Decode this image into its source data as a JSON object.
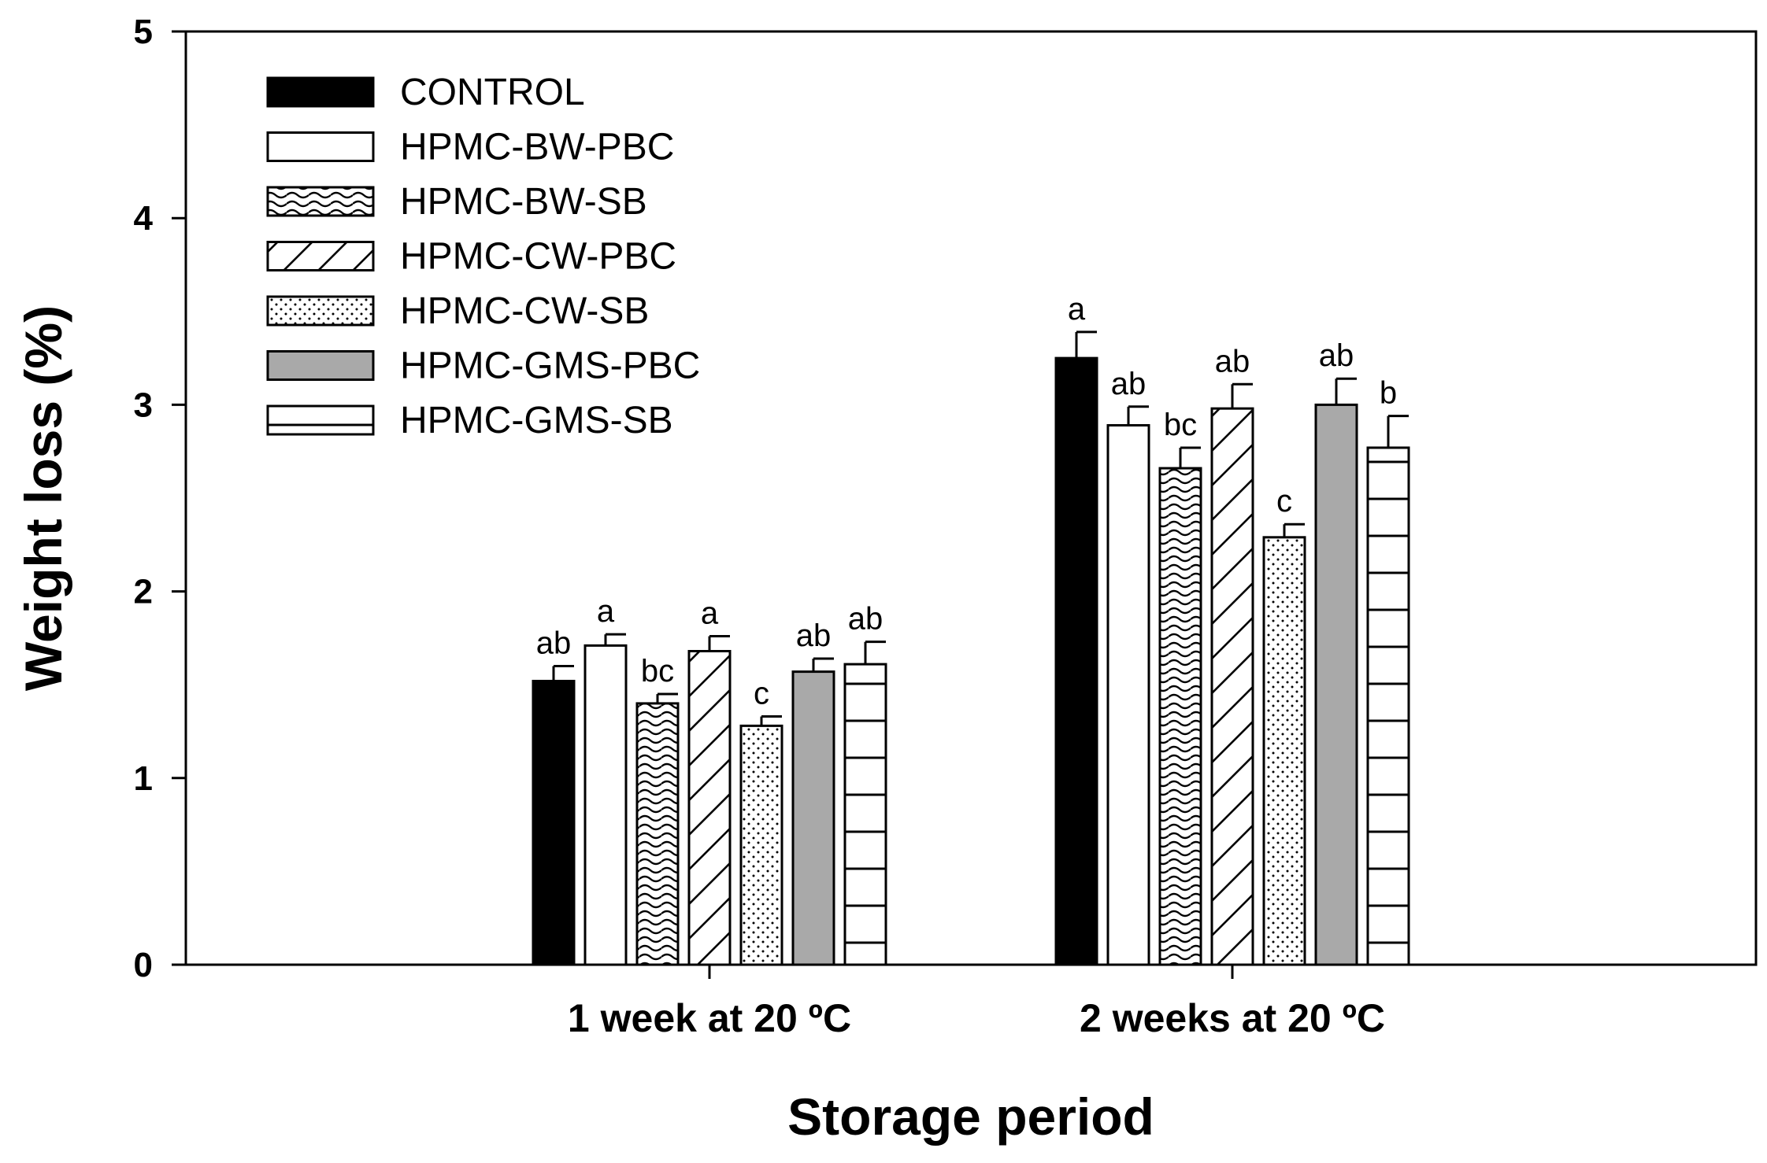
{
  "chart_data": {
    "type": "bar",
    "title": "",
    "xlabel": "Storage period",
    "ylabel": "Weight loss (%)",
    "ylim": [
      0,
      5
    ],
    "yticks": [
      0,
      1,
      2,
      3,
      4,
      5
    ],
    "grid": false,
    "legend_position": "top-left",
    "categories": [
      "1 week at 20 ºC",
      "2 weeks at 20 ºC"
    ],
    "series": [
      {
        "name": "CONTROL",
        "pattern": "solid-black",
        "values": [
          1.52,
          3.25
        ],
        "errors": [
          0.08,
          0.14
        ],
        "labels": [
          "ab",
          "a"
        ]
      },
      {
        "name": "HPMC-BW-PBC",
        "pattern": "white",
        "values": [
          1.71,
          2.89
        ],
        "errors": [
          0.06,
          0.1
        ],
        "labels": [
          "a",
          "ab"
        ]
      },
      {
        "name": "HPMC-BW-SB",
        "pattern": "waves",
        "values": [
          1.4,
          2.66
        ],
        "errors": [
          0.05,
          0.11
        ],
        "labels": [
          "bc",
          "bc"
        ]
      },
      {
        "name": "HPMC-CW-PBC",
        "pattern": "diagonal",
        "values": [
          1.68,
          2.98
        ],
        "errors": [
          0.08,
          0.13
        ],
        "labels": [
          "a",
          "ab"
        ]
      },
      {
        "name": "HPMC-CW-SB",
        "pattern": "dots",
        "values": [
          1.28,
          2.29
        ],
        "errors": [
          0.05,
          0.07
        ],
        "labels": [
          "c",
          "c"
        ]
      },
      {
        "name": "HPMC-GMS-PBC",
        "pattern": "solid-gray",
        "values": [
          1.57,
          3.0
        ],
        "errors": [
          0.07,
          0.14
        ],
        "labels": [
          "ab",
          "ab"
        ]
      },
      {
        "name": "HPMC-GMS-SB",
        "pattern": "horizontal",
        "values": [
          1.61,
          2.77
        ],
        "errors": [
          0.12,
          0.17
        ],
        "labels": [
          "ab",
          "b"
        ]
      }
    ],
    "colors": {
      "black": "#000000",
      "gray": "#a9a9a9",
      "white": "#ffffff"
    }
  }
}
